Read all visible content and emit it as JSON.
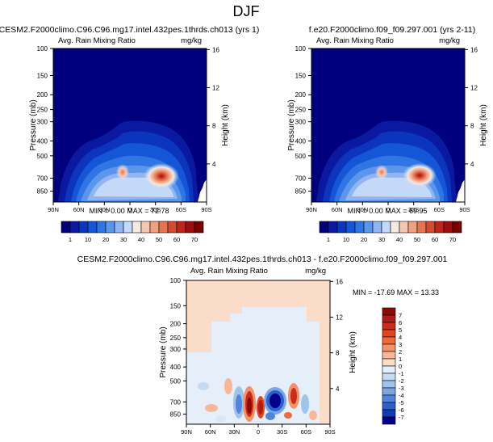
{
  "page_title": "DJF",
  "panels": [
    {
      "id": "panel-1",
      "title": "CESM2.F2000climo.C96.C96.mg17.intel.432pes.1thrds.ch013 (yrs 1)",
      "var_label": "Avg. Rain Mixing Ratio",
      "units": "mg/kg",
      "stats": "MIN =  0.00  MAX =  72.78"
    },
    {
      "id": "panel-2",
      "title": "f.e20.F2000climo.f09_f09.297.001 (yrs 2-11)",
      "var_label": "Avg. Rain Mixing Ratio",
      "units": "mg/kg",
      "stats": "MIN =  0.00  MAX =  69.95"
    },
    {
      "id": "panel-3",
      "title": "CESM2.F2000climo.C96.C96.mg17.intel.432pes.1thrds.ch013 - f.e20.F2000climo.f09_f09.297.001",
      "var_label": "Avg. Rain Mixing Ratio",
      "units": "mg/kg",
      "stats": "MIN = -17.69  MAX =  13.33"
    }
  ],
  "chart_data": [
    {
      "type": "heatmap",
      "panel": "panel-1",
      "xlabel": "",
      "ylabel": "Pressure (mb)",
      "y2label": "Height (km)",
      "x_ticks": [
        "90N",
        "60N",
        "30N",
        "0",
        "30S",
        "60S",
        "90S"
      ],
      "y_ticks": [
        "100",
        "150",
        "200",
        "250",
        "300",
        "400",
        "500",
        "700",
        "850"
      ],
      "y2_ticks": [
        "16",
        "12",
        "8",
        "4"
      ],
      "min": 0.0,
      "max": 72.78,
      "colorbar": {
        "labels": [
          "1",
          "10",
          "20",
          "30",
          "40",
          "50",
          "60",
          "70"
        ],
        "levels": [
          0,
          1,
          5,
          10,
          15,
          20,
          25,
          30,
          35,
          40,
          45,
          50,
          55,
          60,
          65,
          70
        ],
        "colors": [
          "#00007f",
          "#0a1aa0",
          "#0c35be",
          "#1556d6",
          "#2f75e3",
          "#5b95ec",
          "#8fb6f2",
          "#c4d8f7",
          "#f3e9e3",
          "#f6c7b0",
          "#f0a17f",
          "#e47553",
          "#d44a32",
          "#bd2519",
          "#9e0d0d",
          "#7a0000"
        ]
      },
      "features": [
        {
          "label": "peak",
          "lat": -30,
          "pressure": 700,
          "value": 72.78
        }
      ]
    },
    {
      "type": "heatmap",
      "panel": "panel-2",
      "xlabel": "",
      "ylabel": "Pressure (mb)",
      "y2label": "Height (km)",
      "x_ticks": [
        "90N",
        "60N",
        "30N",
        "0",
        "30S",
        "60S",
        "90S"
      ],
      "y_ticks": [
        "100",
        "150",
        "200",
        "250",
        "300",
        "400",
        "500",
        "700",
        "850"
      ],
      "y2_ticks": [
        "16",
        "12",
        "8",
        "4"
      ],
      "min": 0.0,
      "max": 69.95,
      "colorbar": {
        "labels": [
          "1",
          "10",
          "20",
          "30",
          "40",
          "50",
          "60",
          "70"
        ],
        "levels": [
          0,
          1,
          5,
          10,
          15,
          20,
          25,
          30,
          35,
          40,
          45,
          50,
          55,
          60,
          65,
          70
        ],
        "colors": [
          "#00007f",
          "#0a1aa0",
          "#0c35be",
          "#1556d6",
          "#2f75e3",
          "#5b95ec",
          "#8fb6f2",
          "#c4d8f7",
          "#f3e9e3",
          "#f6c7b0",
          "#f0a17f",
          "#e47553",
          "#d44a32",
          "#bd2519",
          "#9e0d0d",
          "#7a0000"
        ]
      },
      "features": [
        {
          "label": "peak",
          "lat": -30,
          "pressure": 700,
          "value": 69.95
        }
      ]
    },
    {
      "type": "heatmap",
      "panel": "panel-3",
      "xlabel": "",
      "ylabel": "Pressure (mb)",
      "y2label": "Height (km)",
      "x_ticks": [
        "90N",
        "60N",
        "30N",
        "0",
        "30S",
        "60S",
        "90S"
      ],
      "y_ticks": [
        "100",
        "150",
        "200",
        "250",
        "300",
        "400",
        "500",
        "700",
        "850"
      ],
      "y2_ticks": [
        "16",
        "12",
        "8",
        "4"
      ],
      "min": -17.69,
      "max": 13.33,
      "colorbar": {
        "labels": [
          "7",
          "6",
          "5",
          "4",
          "3",
          "2",
          "1",
          "0",
          "-1",
          "-2",
          "-3",
          "-4",
          "-5",
          "-6",
          "-7"
        ],
        "colors": [
          "#8c0a0a",
          "#b01c14",
          "#cc2a1a",
          "#e0451e",
          "#ec6a3a",
          "#f49167",
          "#f8b898",
          "#fbdcc9",
          "#e5eef9",
          "#c4dcf3",
          "#9ec3ec",
          "#7aa7e4",
          "#5185dc",
          "#2a5fcc",
          "#113ab3",
          "#00008a"
        ]
      }
    }
  ]
}
